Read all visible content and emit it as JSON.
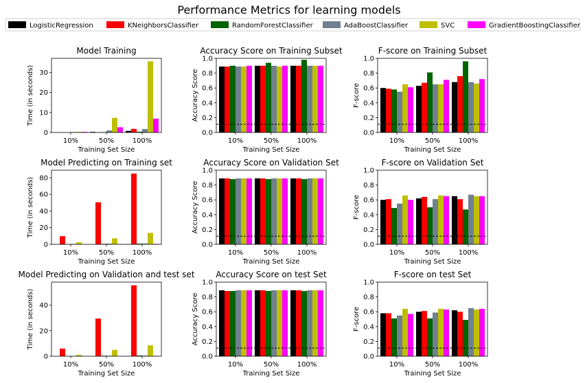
{
  "figure": {
    "title": "Performance Metrics for learning models"
  },
  "legend": {
    "placement": "top",
    "entries": [
      {
        "name": "LogisticRegression",
        "color": "#000000"
      },
      {
        "name": "KNeighborsClassifier",
        "color": "#ff0000"
      },
      {
        "name": "RandomForestClassifier",
        "color": "#006400"
      },
      {
        "name": "AdaBoostClassifier",
        "color": "#708090"
      },
      {
        "name": "SVC",
        "color": "#bfbf00"
      },
      {
        "name": "GradientBoostingClassifier",
        "color": "#ff00ff"
      }
    ]
  },
  "chart_data": [
    {
      "type": "bar",
      "title": "Model Training",
      "xlabel": "Training Set Size",
      "ylabel": "Time (in seconds)",
      "categories": [
        "10%",
        "50%",
        "100%"
      ],
      "ylim": [
        0,
        37
      ],
      "yticks": [
        0,
        10,
        20,
        30
      ],
      "ytick_labels": [
        "0",
        "10",
        "20",
        "30"
      ],
      "threshold": null,
      "series": [
        {
          "name": "LogisticRegression",
          "values": [
            0.05,
            0.3,
            0.8
          ]
        },
        {
          "name": "KNeighborsClassifier",
          "values": [
            0.02,
            0.1,
            1.8
          ]
        },
        {
          "name": "RandomForestClassifier",
          "values": [
            0.05,
            0.2,
            0.4
          ]
        },
        {
          "name": "AdaBoostClassifier",
          "values": [
            0.2,
            1.0,
            1.7
          ]
        },
        {
          "name": "SVC",
          "values": [
            0.3,
            7.3,
            35.5
          ]
        },
        {
          "name": "GradientBoostingClassifier",
          "values": [
            0.3,
            2.6,
            6.9
          ]
        }
      ]
    },
    {
      "type": "bar",
      "title": "Accuracy Score on Training Subset",
      "xlabel": "Training Set Size",
      "ylabel": "Accuracy Score",
      "categories": [
        "10%",
        "50%",
        "100%"
      ],
      "ylim": [
        0,
        1
      ],
      "yticks": [
        0,
        0.2,
        0.4,
        0.6,
        0.8,
        1.0
      ],
      "ytick_labels": [
        "0.0",
        "0.2",
        "0.4",
        "0.6",
        "0.8",
        "1.0"
      ],
      "threshold": 0.11,
      "series": [
        {
          "name": "LogisticRegression",
          "values": [
            0.89,
            0.9,
            0.9
          ]
        },
        {
          "name": "KNeighborsClassifier",
          "values": [
            0.89,
            0.9,
            0.9
          ]
        },
        {
          "name": "RandomForestClassifier",
          "values": [
            0.9,
            0.94,
            0.98
          ]
        },
        {
          "name": "AdaBoostClassifier",
          "values": [
            0.89,
            0.9,
            0.9
          ]
        },
        {
          "name": "SVC",
          "values": [
            0.89,
            0.89,
            0.9
          ]
        },
        {
          "name": "GradientBoostingClassifier",
          "values": [
            0.9,
            0.9,
            0.9
          ]
        }
      ]
    },
    {
      "type": "bar",
      "title": "F-score on Training Subset",
      "xlabel": "Training Set Size",
      "ylabel": "F-score",
      "categories": [
        "10%",
        "50%",
        "100%"
      ],
      "ylim": [
        0,
        1
      ],
      "yticks": [
        0,
        0.2,
        0.4,
        0.6,
        0.8,
        1.0
      ],
      "ytick_labels": [
        "0.0",
        "0.2",
        "0.4",
        "0.6",
        "0.8",
        "1.0"
      ],
      "threshold": 0.11,
      "series": [
        {
          "name": "LogisticRegression",
          "values": [
            0.6,
            0.63,
            0.68
          ]
        },
        {
          "name": "KNeighborsClassifier",
          "values": [
            0.59,
            0.67,
            0.76
          ]
        },
        {
          "name": "RandomForestClassifier",
          "values": [
            0.58,
            0.81,
            0.96
          ]
        },
        {
          "name": "AdaBoostClassifier",
          "values": [
            0.55,
            0.65,
            0.68
          ]
        },
        {
          "name": "SVC",
          "values": [
            0.65,
            0.65,
            0.66
          ]
        },
        {
          "name": "GradientBoostingClassifier",
          "values": [
            0.61,
            0.71,
            0.72
          ]
        }
      ]
    },
    {
      "type": "bar",
      "title": "Model Predicting on Training set",
      "xlabel": "Training Set Size",
      "ylabel": "Time (in seconds)",
      "categories": [
        "10%",
        "50%",
        "100%"
      ],
      "ylim": [
        0,
        89
      ],
      "yticks": [
        0,
        20,
        40,
        60,
        80
      ],
      "ytick_labels": [
        "0",
        "20",
        "40",
        "60",
        "80"
      ],
      "threshold": null,
      "series": [
        {
          "name": "LogisticRegression",
          "values": [
            0.05,
            0.1,
            0.2
          ]
        },
        {
          "name": "KNeighborsClassifier",
          "values": [
            9.8,
            50.5,
            85.0
          ]
        },
        {
          "name": "RandomForestClassifier",
          "values": [
            0.3,
            0.6,
            0.9
          ]
        },
        {
          "name": "AdaBoostClassifier",
          "values": [
            0.6,
            0.9,
            1.0
          ]
        },
        {
          "name": "SVC",
          "values": [
            2.5,
            7.2,
            13.8
          ]
        },
        {
          "name": "GradientBoostingClassifier",
          "values": [
            0.2,
            0.4,
            0.6
          ]
        }
      ]
    },
    {
      "type": "bar",
      "title": "Accuracy Score on Validation Set",
      "xlabel": "Training Set Size",
      "ylabel": "Accuracy Score",
      "categories": [
        "10%",
        "50%",
        "100%"
      ],
      "ylim": [
        0,
        1
      ],
      "yticks": [
        0,
        0.2,
        0.4,
        0.6,
        0.8,
        1.0
      ],
      "ytick_labels": [
        "0.0",
        "0.2",
        "0.4",
        "0.6",
        "0.8",
        "1.0"
      ],
      "threshold": 0.11,
      "series": [
        {
          "name": "LogisticRegression",
          "values": [
            0.89,
            0.89,
            0.89
          ]
        },
        {
          "name": "KNeighborsClassifier",
          "values": [
            0.89,
            0.89,
            0.89
          ]
        },
        {
          "name": "RandomForestClassifier",
          "values": [
            0.88,
            0.88,
            0.88
          ]
        },
        {
          "name": "AdaBoostClassifier",
          "values": [
            0.89,
            0.89,
            0.89
          ]
        },
        {
          "name": "SVC",
          "values": [
            0.89,
            0.89,
            0.89
          ]
        },
        {
          "name": "GradientBoostingClassifier",
          "values": [
            0.89,
            0.89,
            0.89
          ]
        }
      ]
    },
    {
      "type": "bar",
      "title": "F-score on Validation Set",
      "xlabel": "Training Set Size",
      "ylabel": "F-score",
      "categories": [
        "10%",
        "50%",
        "100%"
      ],
      "ylim": [
        0,
        1
      ],
      "yticks": [
        0,
        0.2,
        0.4,
        0.6,
        0.8,
        1.0
      ],
      "ytick_labels": [
        "0.0",
        "0.2",
        "0.4",
        "0.6",
        "0.8",
        "1.0"
      ],
      "threshold": 0.11,
      "series": [
        {
          "name": "LogisticRegression",
          "values": [
            0.6,
            0.62,
            0.65
          ]
        },
        {
          "name": "KNeighborsClassifier",
          "values": [
            0.61,
            0.64,
            0.61
          ]
        },
        {
          "name": "RandomForestClassifier",
          "values": [
            0.49,
            0.5,
            0.47
          ]
        },
        {
          "name": "AdaBoostClassifier",
          "values": [
            0.55,
            0.61,
            0.67
          ]
        },
        {
          "name": "SVC",
          "values": [
            0.66,
            0.66,
            0.65
          ]
        },
        {
          "name": "GradientBoostingClassifier",
          "values": [
            0.6,
            0.65,
            0.65
          ]
        }
      ]
    },
    {
      "type": "bar",
      "title": "Model Predicting on Validation and test set",
      "xlabel": "Training Set Size",
      "ylabel": "Time (in seconds)",
      "categories": [
        "10%",
        "50%",
        "100%"
      ],
      "ylim": [
        0,
        58
      ],
      "yticks": [
        0,
        20,
        40
      ],
      "ytick_labels": [
        "0",
        "20",
        "40"
      ],
      "threshold": null,
      "series": [
        {
          "name": "LogisticRegression",
          "values": [
            0.05,
            0.1,
            0.1
          ]
        },
        {
          "name": "KNeighborsClassifier",
          "values": [
            6.0,
            29.5,
            55.5
          ]
        },
        {
          "name": "RandomForestClassifier",
          "values": [
            0.2,
            0.4,
            0.6
          ]
        },
        {
          "name": "AdaBoostClassifier",
          "values": [
            0.3,
            0.4,
            0.5
          ]
        },
        {
          "name": "SVC",
          "values": [
            1.1,
            5.0,
            8.5
          ]
        },
        {
          "name": "GradientBoostingClassifier",
          "values": [
            0.1,
            0.2,
            0.3
          ]
        }
      ]
    },
    {
      "type": "bar",
      "title": "Accuracy Score on test Set",
      "xlabel": "Training Set Size",
      "ylabel": "Accuracy Score",
      "categories": [
        "10%",
        "50%",
        "100%"
      ],
      "ylim": [
        0,
        1
      ],
      "yticks": [
        0,
        0.2,
        0.4,
        0.6,
        0.8,
        1.0
      ],
      "ytick_labels": [
        "0.0",
        "0.2",
        "0.4",
        "0.6",
        "0.8",
        "1.0"
      ],
      "threshold": 0.11,
      "series": [
        {
          "name": "LogisticRegression",
          "values": [
            0.89,
            0.89,
            0.89
          ]
        },
        {
          "name": "KNeighborsClassifier",
          "values": [
            0.88,
            0.89,
            0.89
          ]
        },
        {
          "name": "RandomForestClassifier",
          "values": [
            0.88,
            0.88,
            0.88
          ]
        },
        {
          "name": "AdaBoostClassifier",
          "values": [
            0.89,
            0.89,
            0.89
          ]
        },
        {
          "name": "SVC",
          "values": [
            0.89,
            0.89,
            0.89
          ]
        },
        {
          "name": "GradientBoostingClassifier",
          "values": [
            0.89,
            0.89,
            0.89
          ]
        }
      ]
    },
    {
      "type": "bar",
      "title": "F-score on test Set",
      "xlabel": "Training Set Size",
      "ylabel": "F-score",
      "categories": [
        "10%",
        "50%",
        "100%"
      ],
      "ylim": [
        0,
        1
      ],
      "yticks": [
        0,
        0.2,
        0.4,
        0.6,
        0.8,
        1.0
      ],
      "ytick_labels": [
        "0.0",
        "0.2",
        "0.4",
        "0.6",
        "0.8",
        "1.0"
      ],
      "threshold": 0.11,
      "series": [
        {
          "name": "LogisticRegression",
          "values": [
            0.58,
            0.6,
            0.62
          ]
        },
        {
          "name": "KNeighborsClassifier",
          "values": [
            0.58,
            0.61,
            0.6
          ]
        },
        {
          "name": "RandomForestClassifier",
          "values": [
            0.51,
            0.51,
            0.49
          ]
        },
        {
          "name": "AdaBoostClassifier",
          "values": [
            0.55,
            0.59,
            0.65
          ]
        },
        {
          "name": "SVC",
          "values": [
            0.64,
            0.64,
            0.63
          ]
        },
        {
          "name": "GradientBoostingClassifier",
          "values": [
            0.57,
            0.63,
            0.64
          ]
        }
      ]
    }
  ]
}
